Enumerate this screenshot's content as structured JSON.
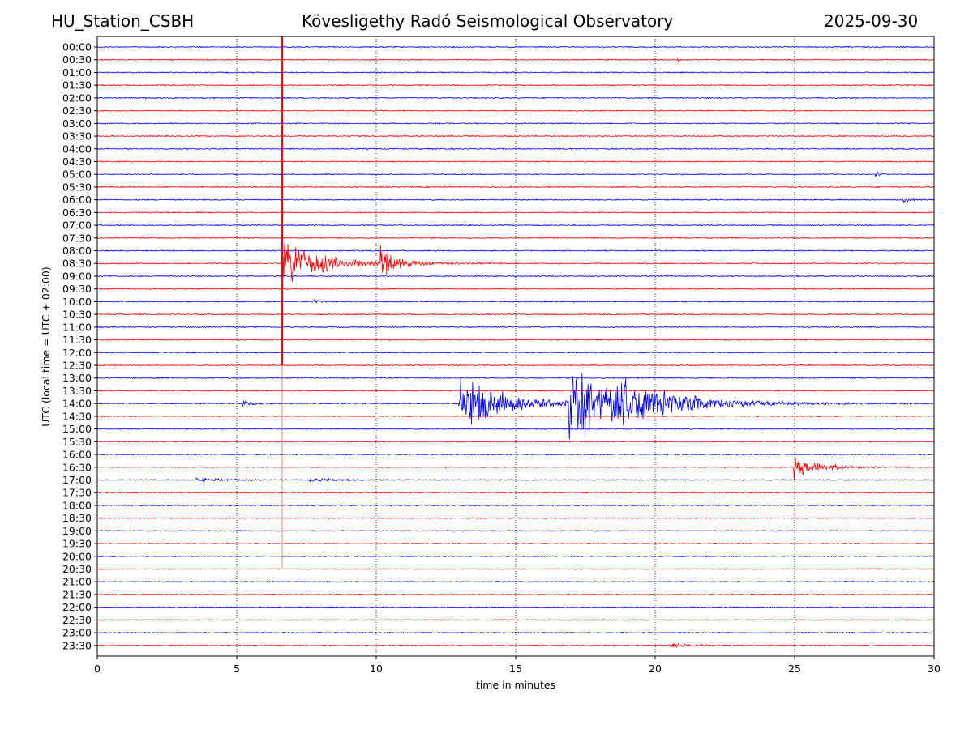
{
  "header": {
    "station": "HU_Station_CSBH",
    "observatory": "Kövesligethy Radó Seismological Observatory",
    "date": "2025-09-30"
  },
  "chart_data": {
    "type": "line",
    "title": "Kövesligethy Radó Seismological Observatory",
    "xlabel": "time in minutes",
    "ylabel": "UTC (local time = UTC + 02:00)",
    "xlim": [
      0,
      30
    ],
    "xticks": [
      "0",
      "5",
      "10",
      "15",
      "20",
      "25",
      "30"
    ],
    "grid": "vertical dotted at 5-minute ticks",
    "row_labels": [
      "00:00",
      "00:30",
      "01:00",
      "01:30",
      "02:00",
      "02:30",
      "03:00",
      "03:30",
      "04:00",
      "04:30",
      "05:00",
      "05:30",
      "06:00",
      "06:30",
      "07:00",
      "07:30",
      "08:00",
      "08:30",
      "09:00",
      "09:30",
      "10:00",
      "10:30",
      "11:00",
      "11:30",
      "12:00",
      "12:30",
      "13:00",
      "13:30",
      "14:00",
      "14:30",
      "15:00",
      "15:30",
      "16:00",
      "16:30",
      "17:00",
      "17:30",
      "18:00",
      "18:30",
      "19:00",
      "19:30",
      "20:00",
      "20:30",
      "21:00",
      "21:30",
      "22:00",
      "22:30",
      "23:00",
      "23:30"
    ],
    "row_colors": [
      "#0000ff",
      "#ff0000"
    ],
    "noise_level_rows": 0.04,
    "events": [
      {
        "row": "08:30",
        "minute": 6.62,
        "amplitude_rows": 1.6,
        "decay_min": 1.4,
        "type": "local"
      },
      {
        "row": "08:30",
        "minute": 10.15,
        "amplitude_rows": 1.2,
        "decay_min": 0.5,
        "type": "local"
      },
      {
        "row": "14:00",
        "minute": 12.95,
        "amplitude_rows": 1.8,
        "decay_min": 1.6,
        "type": "teleseism"
      },
      {
        "row": "14:00",
        "minute": 16.9,
        "amplitude_rows": 2.3,
        "decay_min": 2.0,
        "type": "teleseism"
      },
      {
        "row": "14:00",
        "minute": 18.6,
        "amplitude_rows": 0.6,
        "decay_min": 2.5,
        "type": "teleseism"
      },
      {
        "row": "16:30",
        "minute": 24.95,
        "amplitude_rows": 0.7,
        "decay_min": 0.9,
        "type": "local"
      },
      {
        "row": "00:30",
        "minute": 20.8,
        "amplitude_rows": 0.2,
        "decay_min": 0.05,
        "type": "blip"
      },
      {
        "row": "05:00",
        "minute": 27.9,
        "amplitude_rows": 0.25,
        "decay_min": 0.1,
        "type": "blip"
      },
      {
        "row": "06:00",
        "minute": 28.9,
        "amplitude_rows": 0.2,
        "decay_min": 0.15,
        "type": "blip"
      },
      {
        "row": "10:00",
        "minute": 7.75,
        "amplitude_rows": 0.15,
        "decay_min": 0.2,
        "type": "blip"
      },
      {
        "row": "14:00",
        "minute": 5.2,
        "amplitude_rows": 0.2,
        "decay_min": 0.3,
        "type": "blip"
      },
      {
        "row": "17:00",
        "minute": 3.5,
        "amplitude_rows": 0.12,
        "decay_min": 0.8,
        "type": "blip"
      },
      {
        "row": "17:00",
        "minute": 7.6,
        "amplitude_rows": 0.12,
        "decay_min": 0.9,
        "type": "blip"
      },
      {
        "row": "23:30",
        "minute": 20.5,
        "amplitude_rows": 0.12,
        "decay_min": 0.8,
        "type": "blip"
      }
    ],
    "clipped_trace": {
      "minute": 6.63,
      "from_row": "00:00",
      "heavy_until_row": "12:30",
      "faint_until_row": "20:30",
      "color": "#ff0000"
    }
  }
}
